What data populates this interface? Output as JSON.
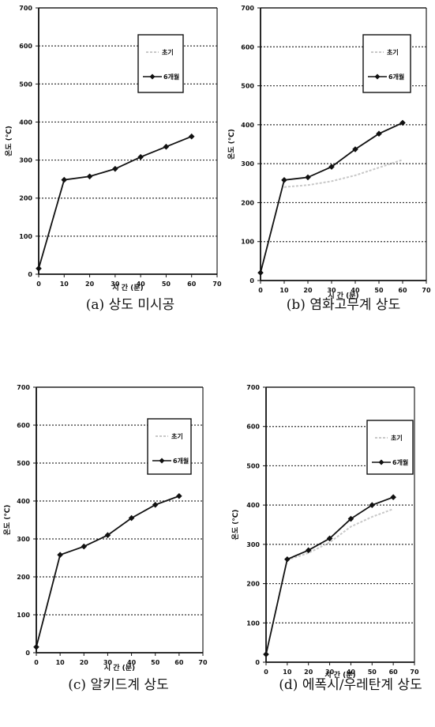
{
  "chart_data": [
    {
      "type": "line",
      "caption": "(a) 상도 미시공",
      "xlabel": "시 간 (분)",
      "ylabel": "온도 (℃)",
      "xlim": [
        0,
        70
      ],
      "ylim": [
        0,
        700
      ],
      "x_ticks": [
        0,
        10,
        20,
        30,
        40,
        50,
        60,
        70
      ],
      "y_ticks": [
        0,
        100,
        200,
        300,
        400,
        500,
        600,
        700
      ],
      "grid": "horizontal dotted",
      "legend_position": "top-right",
      "series": [
        {
          "name": "초기",
          "style": "faint",
          "x": [],
          "y": []
        },
        {
          "name": "6개월",
          "style": "solid-diamond",
          "x": [
            0,
            10,
            20,
            30,
            40,
            50,
            60
          ],
          "y": [
            15,
            248,
            257,
            277,
            308,
            335,
            362
          ]
        }
      ]
    },
    {
      "type": "line",
      "caption": "(b) 염화고무계 상도",
      "xlabel": "시 간 (분)",
      "ylabel": "온도 (℃)",
      "xlim": [
        0,
        70
      ],
      "ylim": [
        0,
        700
      ],
      "x_ticks": [
        0,
        10,
        20,
        30,
        40,
        50,
        60,
        70
      ],
      "y_ticks": [
        0,
        100,
        200,
        300,
        400,
        500,
        600,
        700
      ],
      "grid": "horizontal dotted",
      "legend_position": "top-right",
      "series": [
        {
          "name": "초기",
          "style": "faint",
          "x": [
            10,
            20,
            30,
            40,
            50,
            60
          ],
          "y": [
            240,
            245,
            255,
            270,
            290,
            310
          ]
        },
        {
          "name": "6개월",
          "style": "solid-diamond",
          "x": [
            0,
            10,
            20,
            30,
            40,
            50,
            60
          ],
          "y": [
            20,
            258,
            265,
            292,
            337,
            377,
            405
          ]
        }
      ]
    },
    {
      "type": "line",
      "caption": "(c) 알키드계 상도",
      "xlabel": "시 간 (분)",
      "ylabel": "온도 (℃)",
      "xlim": [
        0,
        70
      ],
      "ylim": [
        0,
        700
      ],
      "x_ticks": [
        0,
        10,
        20,
        30,
        40,
        50,
        60,
        70
      ],
      "y_ticks": [
        0,
        100,
        200,
        300,
        400,
        500,
        600,
        700
      ],
      "grid": "horizontal dotted",
      "legend_position": "top-right",
      "series": [
        {
          "name": "초기",
          "style": "faint",
          "x": [],
          "y": []
        },
        {
          "name": "6개월",
          "style": "solid-diamond",
          "x": [
            0,
            10,
            20,
            30,
            40,
            50,
            60
          ],
          "y": [
            15,
            258,
            280,
            310,
            355,
            390,
            413
          ]
        }
      ]
    },
    {
      "type": "line",
      "caption": "(d) 에폭시/우레탄계 상도",
      "xlabel": "시 간 (분)",
      "ylabel": "온도 (℃)",
      "xlim": [
        0,
        70
      ],
      "ylim": [
        0,
        700
      ],
      "x_ticks": [
        0,
        10,
        20,
        30,
        40,
        50,
        60,
        70
      ],
      "y_ticks": [
        0,
        100,
        200,
        300,
        400,
        500,
        600,
        700
      ],
      "grid": "horizontal dotted",
      "legend_position": "top-right",
      "series": [
        {
          "name": "초기",
          "style": "faint",
          "x": [
            10,
            20,
            30,
            40,
            50,
            60
          ],
          "y": [
            260,
            278,
            305,
            345,
            370,
            390
          ]
        },
        {
          "name": "6개월",
          "style": "solid-diamond",
          "x": [
            0,
            10,
            20,
            30,
            40,
            50,
            60
          ],
          "y": [
            20,
            262,
            285,
            315,
            365,
            400,
            420
          ]
        }
      ]
    }
  ]
}
